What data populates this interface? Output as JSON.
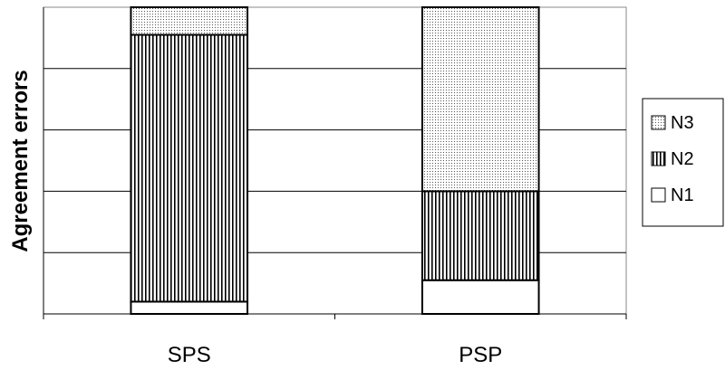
{
  "chart_data": {
    "type": "bar",
    "stacked": true,
    "percent_stacked": true,
    "title": "",
    "xlabel": "",
    "ylabel": "Agreement errors",
    "ylim": [
      0,
      100
    ],
    "y_tick_labels_shown": false,
    "grid": "horizontal",
    "legend_position": "right",
    "categories": [
      "SPS",
      "PSP"
    ],
    "series": [
      {
        "name": "N1",
        "pattern": "solid",
        "color": "#ffffff",
        "values": [
          4,
          11
        ]
      },
      {
        "name": "N2",
        "pattern": "vertical-stripes",
        "color": "#000000",
        "values": [
          87,
          29
        ]
      },
      {
        "name": "N3",
        "pattern": "dots",
        "color": "#000000",
        "values": [
          9,
          60
        ]
      }
    ],
    "legend_order": [
      "N3",
      "N2",
      "N1"
    ]
  }
}
